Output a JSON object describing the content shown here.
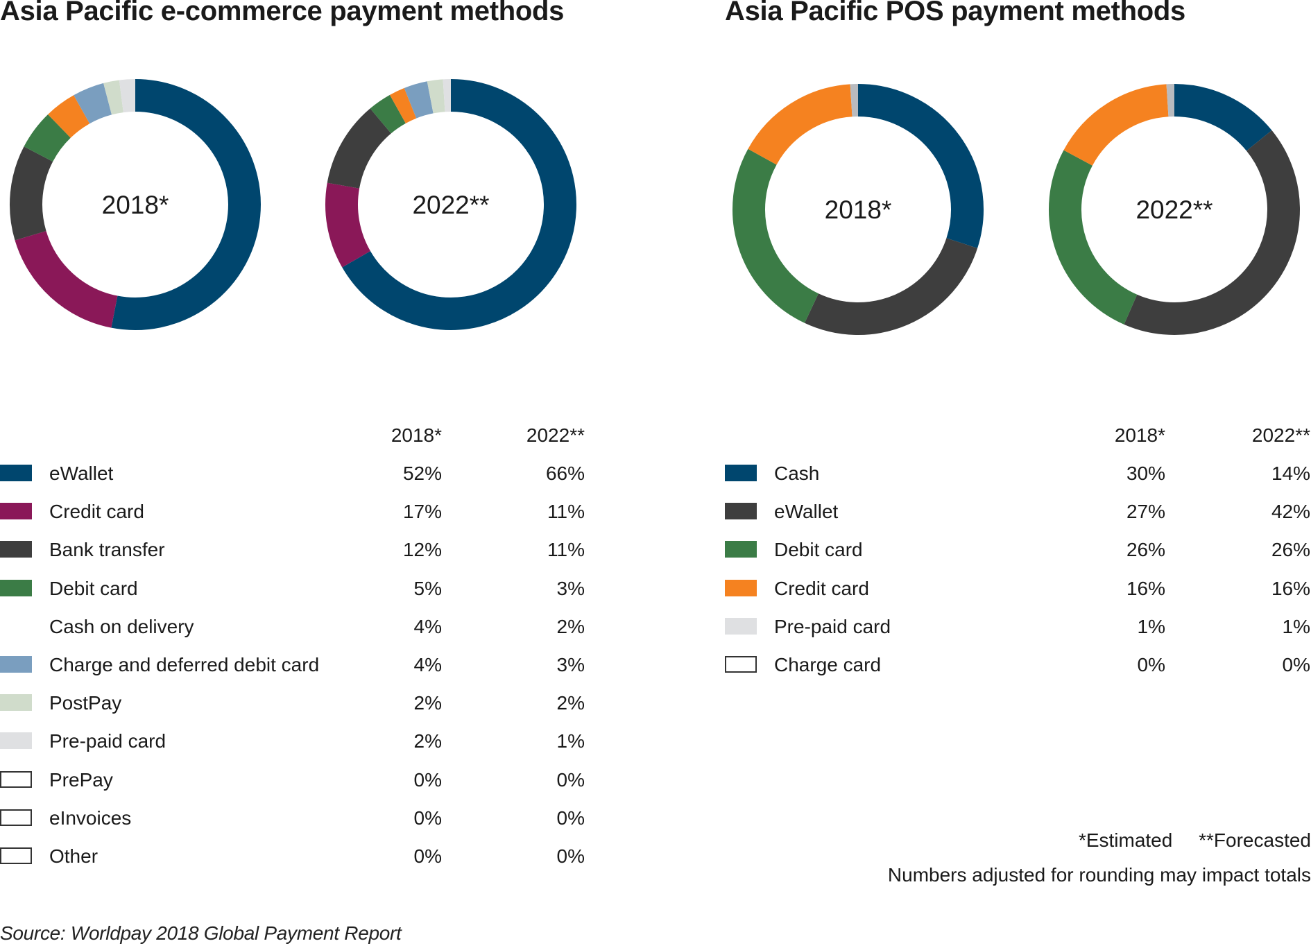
{
  "colors": {
    "eWallet_ecom": "#00466e",
    "Credit card_ecom": "#8a1858",
    "Bank transfer": "#3e3e3e",
    "Debit card": "#3b7c46",
    "Charge and deferred debit card": "#7a9ebf",
    "PostPay": "#d0dccb",
    "Pre-paid card": "#dfe0e2",
    "Cash": "#00466e",
    "eWallet_pos": "#3e3e3e",
    "Credit card_pos": "#f58220",
    "Pre-paid card_pos": "#b9bbbf"
  },
  "chart_data": [
    {
      "type": "pie",
      "title": "Asia Pacific e-commerce payment methods",
      "variant": "donut",
      "years": [
        "2018*",
        "2022**"
      ],
      "col_headers": [
        "2018*",
        "2022**"
      ],
      "series": [
        {
          "name": "eWallet",
          "color": "#00466e",
          "swatch": "fill",
          "values": [
            "52%",
            "66%"
          ],
          "v": [
            52,
            66
          ]
        },
        {
          "name": "Credit card",
          "color": "#8a1858",
          "swatch": "fill",
          "values": [
            "17%",
            "11%"
          ],
          "v": [
            17,
            11
          ]
        },
        {
          "name": "Bank transfer",
          "color": "#3e3e3e",
          "swatch": "fill",
          "values": [
            "12%",
            "11%"
          ],
          "v": [
            12,
            11
          ]
        },
        {
          "name": "Debit card",
          "color": "#3b7c46",
          "swatch": "fill",
          "values": [
            "5%",
            "3%"
          ],
          "v": [
            5,
            3
          ]
        },
        {
          "name": "Cash on delivery",
          "color": "#f58220",
          "swatch": "none",
          "values": [
            "4%",
            "2%"
          ],
          "v": [
            4,
            2
          ]
        },
        {
          "name": "Charge and deferred debit card",
          "color": "#7a9ebf",
          "swatch": "fill",
          "values": [
            "4%",
            "3%"
          ],
          "v": [
            4,
            3
          ]
        },
        {
          "name": "PostPay",
          "color": "#d0dccb",
          "swatch": "fill",
          "values": [
            "2%",
            "2%"
          ],
          "v": [
            2,
            2
          ]
        },
        {
          "name": "Pre-paid card",
          "color": "#dfe0e2",
          "swatch": "fill",
          "values": [
            "2%",
            "1%"
          ],
          "v": [
            2,
            1
          ]
        },
        {
          "name": "PrePay",
          "color": "#ffffff",
          "swatch": "outline",
          "values": [
            "0%",
            "0%"
          ],
          "v": [
            0,
            0
          ]
        },
        {
          "name": "eInvoices",
          "color": "#ffffff",
          "swatch": "outline",
          "values": [
            "0%",
            "0%"
          ],
          "v": [
            0,
            0
          ]
        },
        {
          "name": "Other",
          "color": "#ffffff",
          "swatch": "outline",
          "values": [
            "0%",
            "0%"
          ],
          "v": [
            0,
            0
          ]
        }
      ]
    },
    {
      "type": "pie",
      "title": "Asia Pacific POS payment methods",
      "variant": "donut",
      "years": [
        "2018*",
        "2022**"
      ],
      "col_headers": [
        "2018*",
        "2022**"
      ],
      "series": [
        {
          "name": "Cash",
          "color": "#00466e",
          "swatch": "fill",
          "values": [
            "30%",
            "14%"
          ],
          "v": [
            30,
            14
          ]
        },
        {
          "name": "eWallet",
          "color": "#3e3e3e",
          "swatch": "fill",
          "values": [
            "27%",
            "42%"
          ],
          "v": [
            27,
            42
          ]
        },
        {
          "name": "Debit card",
          "color": "#3b7c46",
          "swatch": "fill",
          "values": [
            "26%",
            "26%"
          ],
          "v": [
            26,
            26
          ]
        },
        {
          "name": "Credit card",
          "color": "#f58220",
          "swatch": "fill",
          "values": [
            "16%",
            "16%"
          ],
          "v": [
            16,
            16
          ]
        },
        {
          "name": "Pre-paid card",
          "color": "#b9bbbf",
          "legend_color": "#dfe0e2",
          "swatch": "fill",
          "values": [
            "1%",
            "1%"
          ],
          "v": [
            1,
            1
          ]
        },
        {
          "name": "Charge card",
          "color": "#ffffff",
          "swatch": "outline",
          "values": [
            "0%",
            "0%"
          ],
          "v": [
            0,
            0
          ]
        }
      ]
    }
  ],
  "notes": {
    "estimated": "*Estimated",
    "forecasted": "**Forecasted",
    "rounding": "Numbers adjusted for rounding may impact totals"
  },
  "source": "Source: Worldpay 2018 Global Payment Report"
}
